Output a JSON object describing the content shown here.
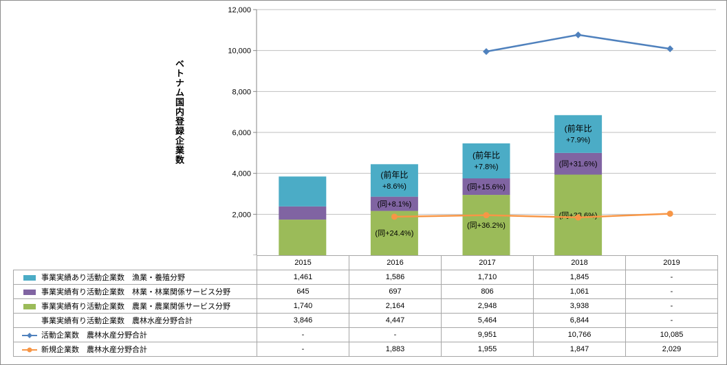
{
  "chart_data": {
    "type": "bar",
    "stacked": true,
    "ylabel": "ベトナム国内登録企業数",
    "ylim": [
      0,
      12000
    ],
    "yticks": [
      "-",
      "2,000",
      "4,000",
      "6,000",
      "8,000",
      "10,000",
      "12,000"
    ],
    "categories": [
      "2015",
      "2016",
      "2017",
      "2018",
      "2019"
    ],
    "series": [
      {
        "name": "事業実績あり活動企業数　漁業・養殖分野",
        "kind": "bar",
        "color": "#4bacc6",
        "values": [
          1461,
          1586,
          1710,
          1845,
          null
        ],
        "display": [
          "1,461",
          "1,586",
          "1,710",
          "1,845",
          "-"
        ]
      },
      {
        "name": "事業実績有り活動企業数　林業・林業関係サービス分野",
        "kind": "bar",
        "color": "#8064a2",
        "values": [
          645,
          697,
          806,
          1061,
          null
        ],
        "display": [
          "645",
          "697",
          "806",
          "1,061",
          "-"
        ]
      },
      {
        "name": "事業実績有り活動企業数　農業・農業関係サービス分野",
        "kind": "bar",
        "color": "#9bbb59",
        "values": [
          1740,
          2164,
          2948,
          3938,
          null
        ],
        "display": [
          "1,740",
          "2,164",
          "2,948",
          "3,938",
          "-"
        ]
      },
      {
        "name": "事業実績有り活動企業数　農林水産分野合計",
        "kind": "none",
        "color": "",
        "values": [
          3846,
          4447,
          5464,
          6844,
          null
        ],
        "display": [
          "3,846",
          "4,447",
          "5,464",
          "6,844",
          "-"
        ]
      },
      {
        "name": "活動企業数　農林水産分野合計",
        "kind": "line",
        "marker": "diamond",
        "color": "#4f81bd",
        "values": [
          null,
          null,
          9951,
          10766,
          10085
        ],
        "display": [
          "-",
          "-",
          "9,951",
          "10,766",
          "10,085"
        ]
      },
      {
        "name": "新規企業数　農林水産分野合計",
        "kind": "line",
        "marker": "circle",
        "color": "#f79646",
        "values": [
          null,
          1883,
          1955,
          1847,
          2029
        ],
        "display": [
          "-",
          "1,883",
          "1,955",
          "1,847",
          "2,029"
        ]
      }
    ],
    "annotations": [
      {
        "category": "2016",
        "series": 0,
        "lines": [
          "(前年比",
          "+8.6%)"
        ]
      },
      {
        "category": "2016",
        "series": 1,
        "lines": [
          "(同+8.1%)"
        ]
      },
      {
        "category": "2016",
        "series": 2,
        "lines": [
          "(同+24.4%)"
        ]
      },
      {
        "category": "2017",
        "series": 0,
        "lines": [
          "(前年比",
          "+7.8%)"
        ]
      },
      {
        "category": "2017",
        "series": 1,
        "lines": [
          "(同+15.6%)"
        ]
      },
      {
        "category": "2017",
        "series": 2,
        "lines": [
          "(同+36.2%)"
        ]
      },
      {
        "category": "2018",
        "series": 0,
        "lines": [
          "(前年比",
          "+7.9%)"
        ]
      },
      {
        "category": "2018",
        "series": 1,
        "lines": [
          "(同+31.6%)"
        ]
      },
      {
        "category": "2018",
        "series": 2,
        "lines": [
          "(同+33.6%)"
        ]
      }
    ]
  }
}
